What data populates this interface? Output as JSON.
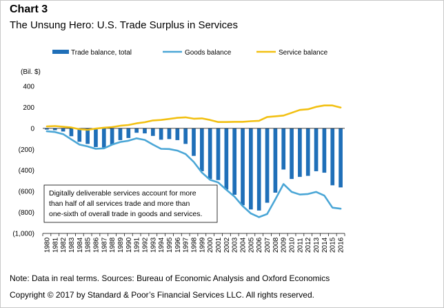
{
  "header": {
    "chart_number": "Chart 3",
    "title": "The Unsung Hero: U.S. Trade Surplus in Services"
  },
  "footer": {
    "note": "Note: Data in real terms. Sources: Bureau of Economic Analysis and Oxford Economics",
    "copyright": "Copyright © 2017 by Standard & Poor’s Financial Services LLC. All rights reserved."
  },
  "chart_data": {
    "type": "bar",
    "title": "The Unsung Hero: U.S. Trade Surplus in Services",
    "ylabel": "(Bil. $)",
    "ylim": [
      -1000,
      400
    ],
    "yticks": [
      400,
      200,
      0,
      -200,
      -400,
      -600,
      -800,
      -1000
    ],
    "ytick_labels": [
      "400",
      "200",
      "0",
      "(200)",
      "(400)",
      "(600)",
      "(800)",
      "(1,000)"
    ],
    "categories": [
      "1980",
      "1981",
      "1982",
      "1983",
      "1984",
      "1985",
      "1986",
      "1987",
      "1988",
      "1989",
      "1990",
      "1991",
      "1992",
      "1993",
      "1994",
      "1995",
      "1996",
      "1997",
      "1998",
      "1999",
      "2000",
      "2001",
      "2002",
      "2003",
      "2004",
      "2005",
      "2006",
      "2007",
      "2008",
      "2009",
      "2010",
      "2011",
      "2012",
      "2013",
      "2014",
      "2015",
      "2016"
    ],
    "series": [
      {
        "name": "Trade balance, total",
        "kind": "bar",
        "color": "#1f6fb8",
        "values": [
          -12,
          -18,
          -30,
          -75,
          -128,
          -148,
          -178,
          -182,
          -155,
          -112,
          -92,
          -42,
          -48,
          -72,
          -108,
          -102,
          -112,
          -148,
          -262,
          -408,
          -482,
          -492,
          -582,
          -632,
          -732,
          -772,
          -782,
          -708,
          -612,
          -392,
          -482,
          -462,
          -452,
          -408,
          -422,
          -542,
          -562
        ]
      },
      {
        "name": "Goods balance",
        "kind": "line",
        "color": "#4aa6d6",
        "values": [
          -28,
          -35,
          -55,
          -105,
          -155,
          -172,
          -195,
          -190,
          -155,
          -130,
          -118,
          -95,
          -110,
          -155,
          -195,
          -197,
          -212,
          -245,
          -320,
          -420,
          -490,
          -515,
          -585,
          -650,
          -740,
          -810,
          -845,
          -815,
          -675,
          -530,
          -605,
          -630,
          -625,
          -605,
          -640,
          -755,
          -765
        ]
      },
      {
        "name": "Service balance",
        "kind": "line",
        "color": "#f2c012",
        "values": [
          18,
          22,
          15,
          8,
          -8,
          -14,
          -2,
          6,
          12,
          25,
          32,
          48,
          58,
          75,
          80,
          90,
          100,
          105,
          92,
          95,
          80,
          60,
          60,
          62,
          62,
          68,
          72,
          108,
          115,
          122,
          148,
          175,
          182,
          205,
          218,
          218,
          198
        ]
      }
    ],
    "annotation": {
      "lines": [
        "Digitally deliverable services account for more",
        "than half of all services trade and more than",
        "one-sixth of overall trade in goods and services."
      ]
    },
    "legend_position": "top",
    "grid": false
  }
}
